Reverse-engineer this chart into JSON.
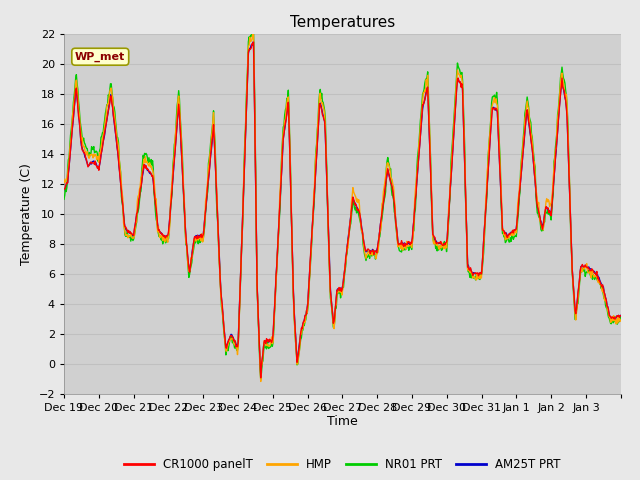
{
  "title": "Temperatures",
  "ylabel": "Temperature (C)",
  "xlabel": "Time",
  "annotation": "WP_met",
  "ylim": [
    -2,
    22
  ],
  "background_color": "#e8e8e8",
  "plot_bg_color": "#d8d8d8",
  "legend_labels": [
    "CR1000 panelT",
    "HMP",
    "NR01 PRT",
    "AM25T PRT"
  ],
  "legend_colors": [
    "#ff0000",
    "#ffa500",
    "#00cc00",
    "#0000cc"
  ],
  "xtick_labels": [
    "Dec 19",
    "Dec 20",
    "Dec 21",
    "Dec 22",
    "Dec 23",
    "Dec 24",
    "Dec 25",
    "Dec 26",
    "Dec 27",
    "Dec 28",
    "Dec 29",
    "Dec 30",
    "Dec 31",
    "Jan 1",
    "Jan 2",
    "Jan 3"
  ],
  "grid_color": "#c8c8c8",
  "title_fontsize": 11,
  "axis_fontsize": 9,
  "tick_fontsize": 8
}
